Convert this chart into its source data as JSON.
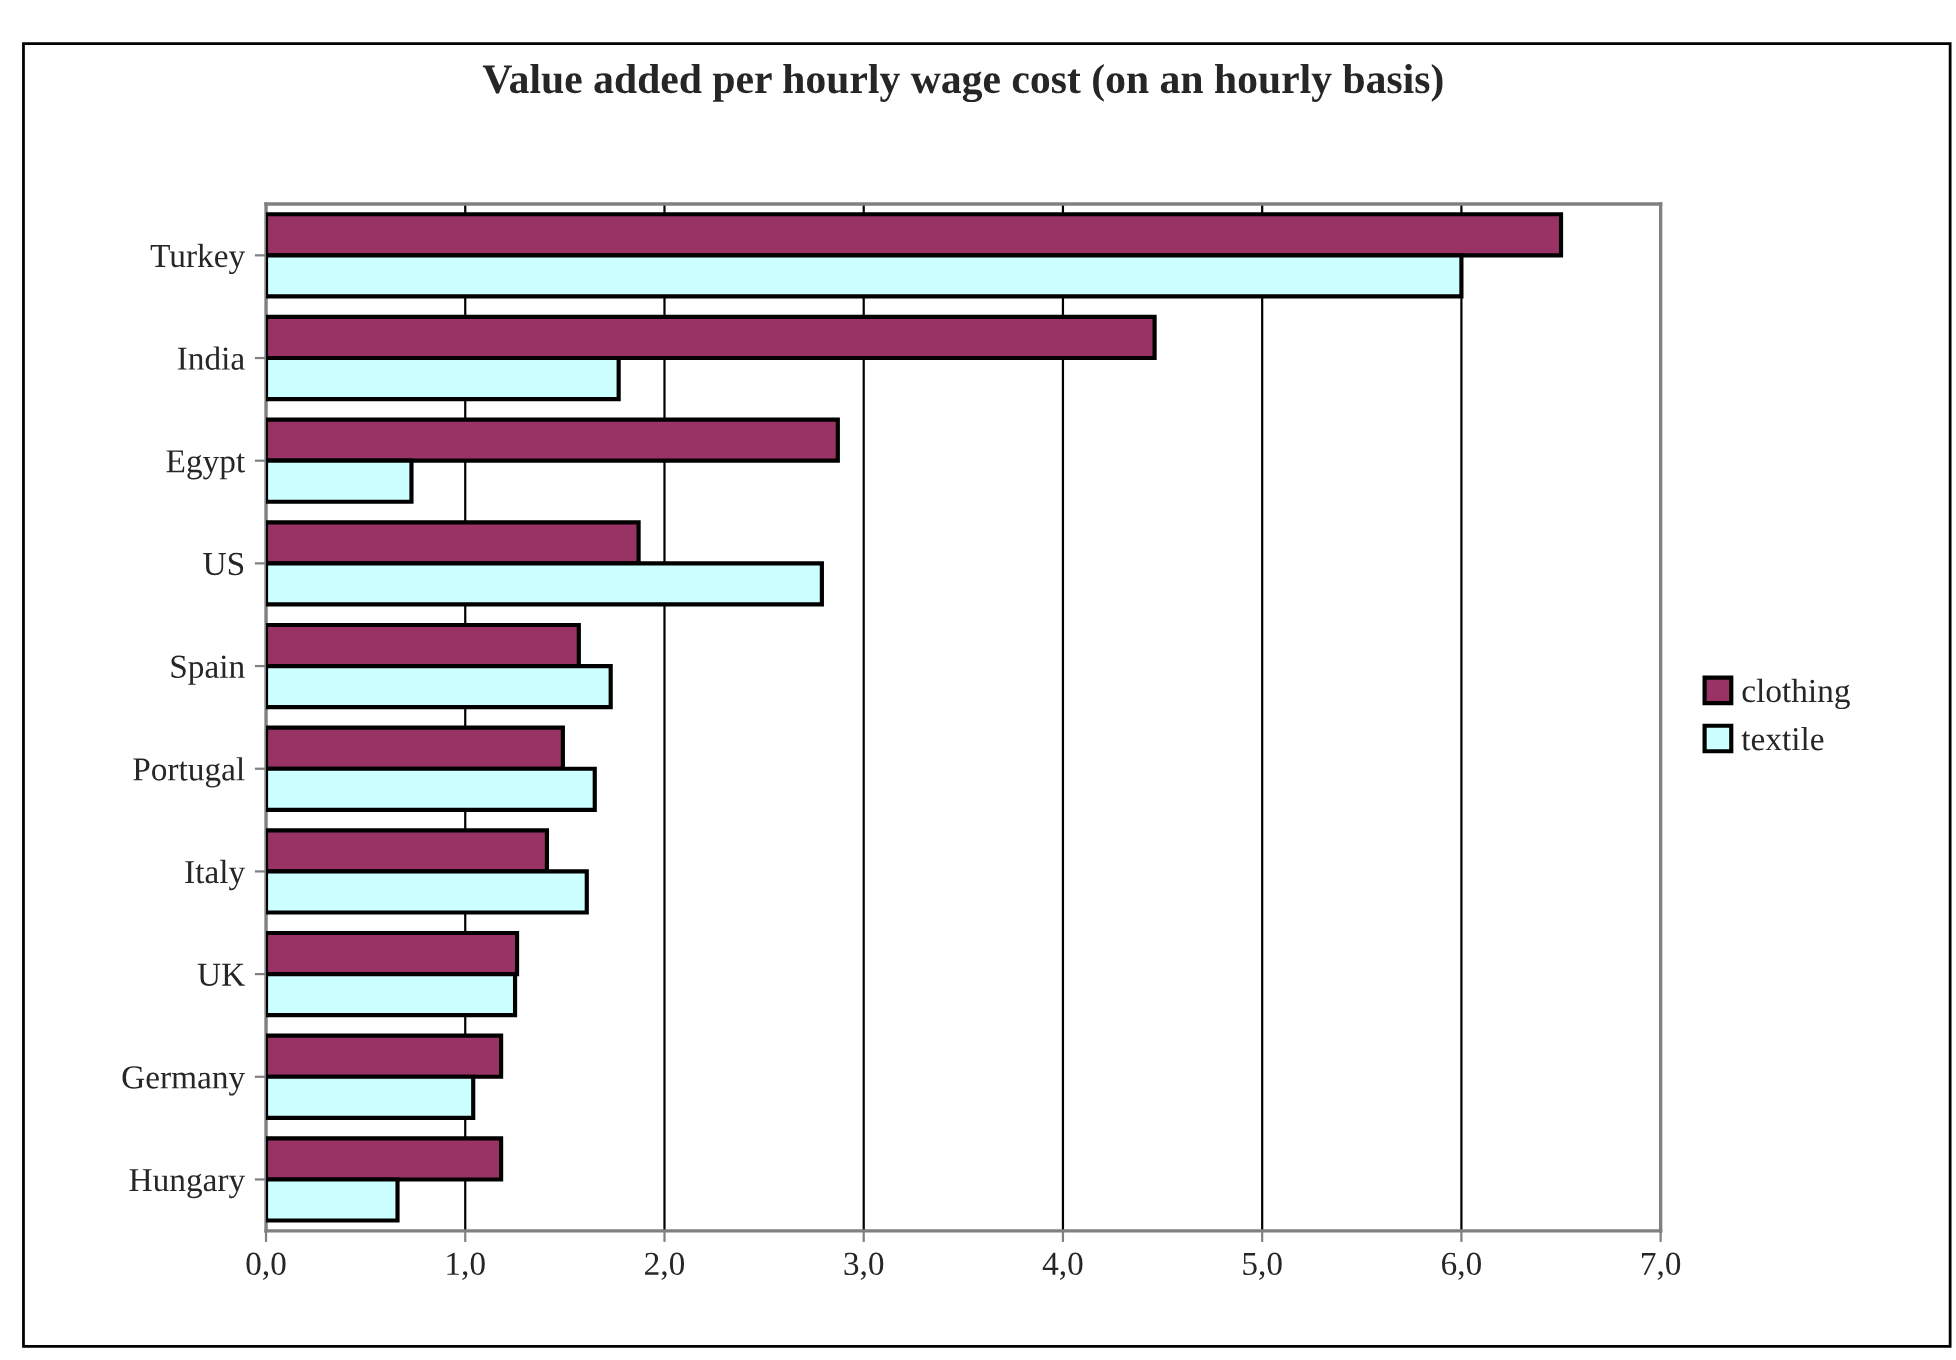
{
  "chart_data": {
    "type": "bar",
    "orientation": "horizontal",
    "title": "Value added per hourly wage cost (on an hourly basis)",
    "categories": [
      "Turkey",
      "India",
      "Egypt",
      "US",
      "Spain",
      "Portugal",
      "Italy",
      "UK",
      "Germany",
      "Hungary"
    ],
    "series": [
      {
        "name": "clothing",
        "color": "#993366",
        "values": [
          6.5,
          4.46,
          2.87,
          1.87,
          1.57,
          1.49,
          1.41,
          1.26,
          1.18,
          1.18
        ]
      },
      {
        "name": "textile",
        "color": "#ccffff",
        "values": [
          6.0,
          1.77,
          0.73,
          2.79,
          1.73,
          1.65,
          1.61,
          1.25,
          1.04,
          0.66
        ]
      }
    ],
    "xlim": [
      0,
      7
    ],
    "xticks": [
      {
        "value": 0,
        "label": "0,0"
      },
      {
        "value": 1,
        "label": "1,0"
      },
      {
        "value": 2,
        "label": "2,0"
      },
      {
        "value": 3,
        "label": "3,0"
      },
      {
        "value": 4,
        "label": "4,0"
      },
      {
        "value": 5,
        "label": "5,0"
      },
      {
        "value": 6,
        "label": "6,0"
      },
      {
        "value": 7,
        "label": "7,0"
      }
    ],
    "grid": "x",
    "legend": "right"
  }
}
